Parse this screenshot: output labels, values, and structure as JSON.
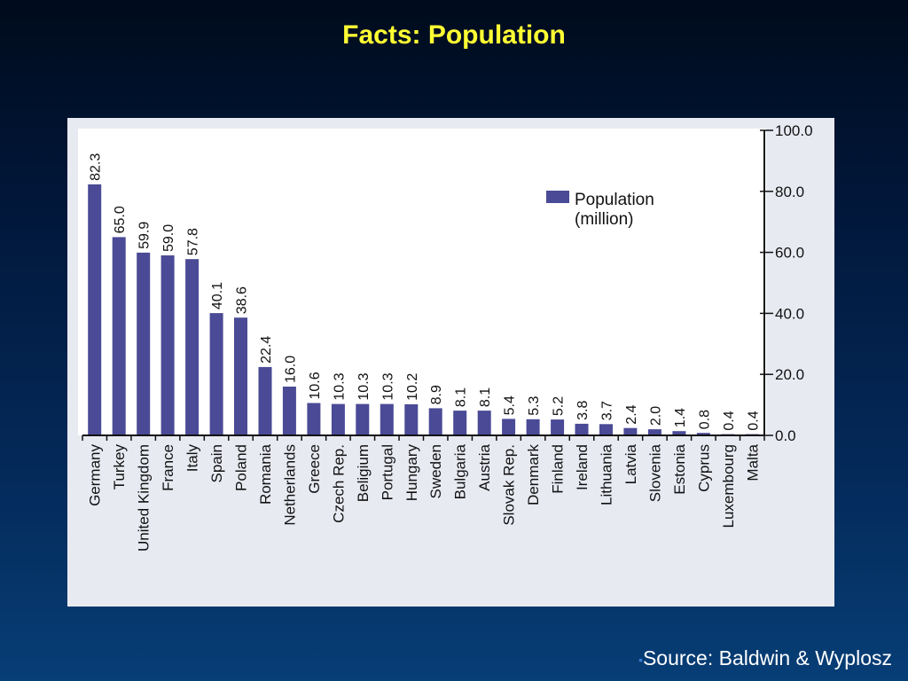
{
  "slide": {
    "title": "Facts: Population",
    "source_bullet": "•",
    "source": "Source: Baldwin & Wyplosz"
  },
  "colors": {
    "background_top": "#000b1c",
    "background_bottom": "#073e76",
    "title": "#ffff33",
    "chart_panel": "#e8eaf2",
    "bar": "#4a4a96"
  },
  "chart_data": {
    "type": "bar",
    "title": "",
    "xlabel": "",
    "ylabel": "",
    "ylim": [
      0,
      100
    ],
    "y_ticks": [
      "0.0",
      "20.0",
      "40.0",
      "60.0",
      "80.0",
      "100.0"
    ],
    "y_axis_side": "right",
    "legend_position": "top-right",
    "series": [
      {
        "name": "Population (million)",
        "legend_lines": [
          "Population",
          "(million)"
        ],
        "values": [
          82.3,
          65.0,
          59.9,
          59.0,
          57.8,
          40.1,
          38.6,
          22.4,
          16.0,
          10.6,
          10.3,
          10.3,
          10.3,
          10.2,
          8.9,
          8.1,
          8.1,
          5.4,
          5.3,
          5.2,
          3.8,
          3.7,
          2.4,
          2.0,
          1.4,
          0.8,
          0.4,
          0.4
        ],
        "labels": [
          "82.3",
          "65.0",
          "59.9",
          "59.0",
          "57.8",
          "40.1",
          "38.6",
          "22.4",
          "16.0",
          "10.6",
          "10.3",
          "10.3",
          "10.3",
          "10.2",
          "8.9",
          "8.1",
          "8.1",
          "5.4",
          "5.3",
          "5.2",
          "3.8",
          "3.7",
          "2.4",
          "2.0",
          "1.4",
          "0.8",
          "0.4",
          "0.4"
        ]
      }
    ],
    "categories": [
      "Germany",
      "Turkey",
      "United Kingdom",
      "France",
      "Italy",
      "Spain",
      "Poland",
      "Romania",
      "Netherlands",
      "Greece",
      "Czech Rep.",
      "Beligium",
      "Portugal",
      "Hungary",
      "Sweden",
      "Bulgaria",
      "Austria",
      "Slovak Rep.",
      "Denmark",
      "Finland",
      "Ireland",
      "Lithuania",
      "Latvia",
      "Slovenia",
      "Estonia",
      "Cyprus",
      "Luxembourg",
      "Malta"
    ]
  }
}
